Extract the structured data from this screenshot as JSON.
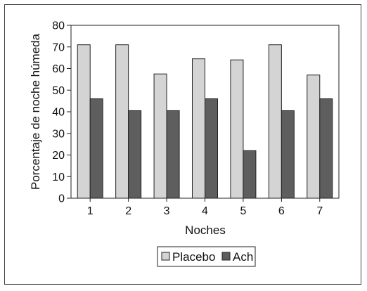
{
  "chart_data": {
    "type": "bar",
    "xlabel": "Noches",
    "ylabel": "Porcentaje de noche húmeda",
    "categories": [
      "1",
      "2",
      "3",
      "4",
      "5",
      "6",
      "7"
    ],
    "ylim": [
      0,
      80
    ],
    "yticks": [
      "0",
      "10",
      "20",
      "30",
      "40",
      "50",
      "60",
      "70",
      "80"
    ],
    "grid": false,
    "legend_position": "bottom",
    "series": [
      {
        "name": "Placebo",
        "color": "#d4d4d4",
        "values": [
          71,
          71,
          57.5,
          64.5,
          64,
          71,
          57
        ]
      },
      {
        "name": "Ach",
        "color": "#5e5e5e",
        "values": [
          46,
          40.5,
          40.5,
          46,
          22,
          40.5,
          46
        ]
      }
    ]
  }
}
